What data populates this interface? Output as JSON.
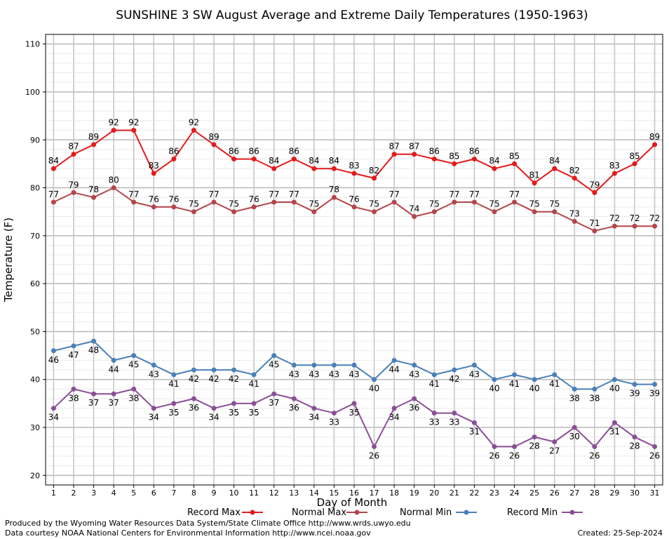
{
  "chart_data": {
    "type": "line",
    "title": "SUNSHINE 3 SW August Average and Extreme Daily Temperatures (1950-1963)",
    "xlabel": "Day of Month",
    "ylabel": "Temperature (F)",
    "ylim": [
      18,
      112
    ],
    "yticks": [
      20,
      30,
      40,
      50,
      60,
      70,
      80,
      90,
      100,
      110
    ],
    "xlim": [
      0.6,
      31.4
    ],
    "x": [
      1,
      2,
      3,
      4,
      5,
      6,
      7,
      8,
      9,
      10,
      11,
      12,
      13,
      14,
      15,
      16,
      17,
      18,
      19,
      20,
      21,
      22,
      23,
      24,
      25,
      26,
      27,
      28,
      29,
      30,
      31
    ],
    "grid": true,
    "legend_position": "bottom",
    "series": [
      {
        "name": "Record Max",
        "color": "#e41a1c",
        "label_pos": "above",
        "values": [
          84,
          87,
          89,
          92,
          92,
          83,
          86,
          92,
          89,
          86,
          86,
          84,
          86,
          84,
          84,
          83,
          82,
          87,
          87,
          86,
          85,
          86,
          84,
          85,
          81,
          84,
          82,
          79,
          83,
          85,
          89
        ]
      },
      {
        "name": "Normal Max",
        "color": "#b4454a",
        "label_pos": "above",
        "values": [
          77,
          79,
          78,
          80,
          77,
          76,
          76,
          75,
          77,
          75,
          76,
          77,
          77,
          75,
          78,
          76,
          75,
          77,
          74,
          75,
          77,
          77,
          75,
          77,
          75,
          75,
          73,
          71,
          72,
          72,
          72
        ]
      },
      {
        "name": "Normal Min",
        "color": "#4a80b8",
        "label_pos": "below",
        "values": [
          46,
          47,
          48,
          44,
          45,
          43,
          41,
          42,
          42,
          42,
          41,
          45,
          43,
          43,
          43,
          43,
          40,
          44,
          43,
          41,
          42,
          43,
          40,
          41,
          40,
          41,
          38,
          38,
          40,
          39,
          39
        ]
      },
      {
        "name": "Record Min",
        "color": "#8a4f96",
        "label_pos": "below",
        "values": [
          34,
          38,
          37,
          37,
          38,
          34,
          35,
          36,
          34,
          35,
          35,
          37,
          36,
          34,
          33,
          35,
          26,
          34,
          36,
          33,
          33,
          31,
          26,
          26,
          28,
          27,
          30,
          26,
          31,
          28,
          26
        ]
      }
    ]
  },
  "footer": {
    "left1": "Produced by the Wyoming Water Resources Data System/State Climate Office http://www.wrds.uwyo.edu",
    "left2": "Data courtesy NOAA National Centers for Environmental Information http://www.ncei.noaa.gov",
    "right": "Created:  25-Sep-2024"
  }
}
